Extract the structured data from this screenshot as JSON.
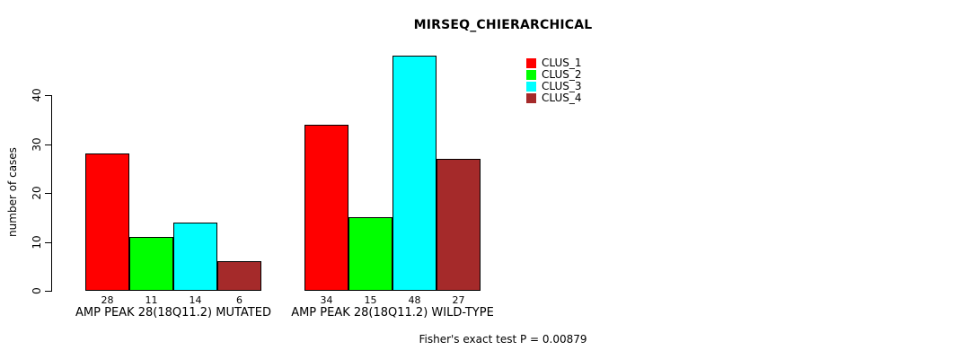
{
  "figure": {
    "title": "MIRSEQ_CHIERARCHICAL",
    "footnote": "Fisher's exact test P = 0.00879"
  },
  "chart_data": {
    "type": "bar",
    "title": "MIRSEQ_CHIERARCHICAL",
    "xlabel": "",
    "ylabel": "number of cases",
    "ylim": [
      0,
      48
    ],
    "yticks": [
      0,
      10,
      20,
      30,
      40
    ],
    "grid": false,
    "legend_position": "top-right",
    "categories": [
      "AMP PEAK 28(18Q11.2) MUTATED",
      "AMP PEAK 28(18Q11.2) WILD-TYPE"
    ],
    "series": [
      {
        "name": "CLUS_1",
        "color": "#FF0000",
        "values": [
          28,
          34
        ]
      },
      {
        "name": "CLUS_2",
        "color": "#00FF00",
        "values": [
          11,
          15
        ]
      },
      {
        "name": "CLUS_3",
        "color": "#00FFFF",
        "values": [
          14,
          48
        ]
      },
      {
        "name": "CLUS_4",
        "color": "#A52A2A",
        "values": [
          6,
          27
        ]
      }
    ],
    "groups": [
      {
        "label": "AMP PEAK 28(18Q11.2) MUTATED",
        "values": [
          28,
          11,
          14,
          6
        ],
        "value_labels": [
          "28",
          "11",
          "14",
          "6"
        ]
      },
      {
        "label": "AMP PEAK 28(18Q11.2) WILD-TYPE",
        "values": [
          34,
          15,
          48,
          27
        ],
        "value_labels": [
          "34",
          "15",
          "48",
          "27"
        ]
      }
    ],
    "footnote": "Fisher's exact test P = 0.00879"
  }
}
